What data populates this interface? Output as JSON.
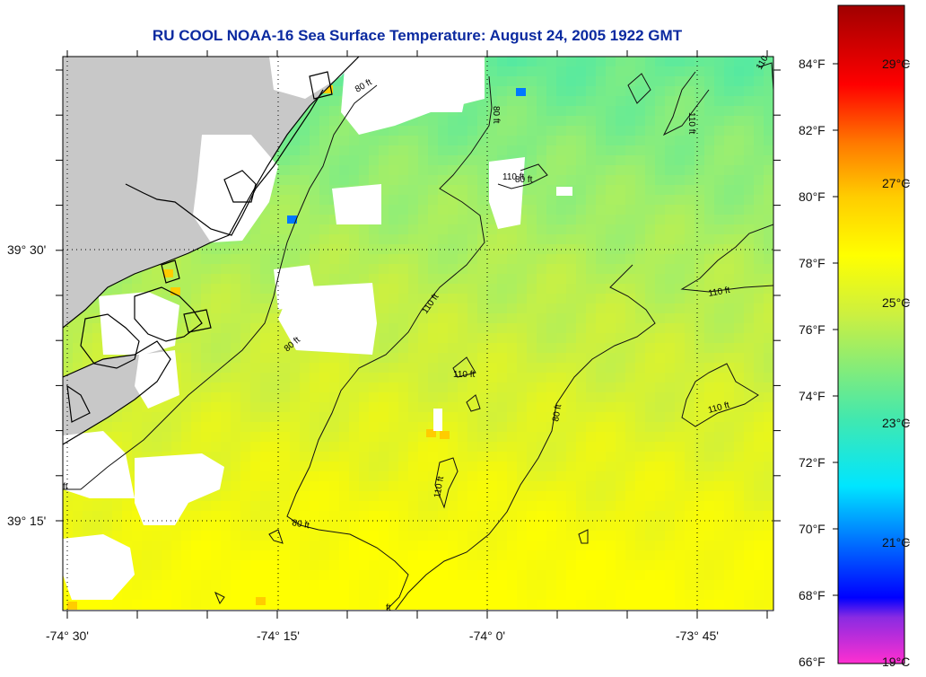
{
  "title": "RU COOL  NOAA-16  Sea Surface Temperature:  August 24, 2005 1922 GMT",
  "axes": {
    "longitude_ticks": [
      "-74° 30'",
      "-74° 15'",
      "-74° 0'",
      "-73° 45'"
    ],
    "latitude_ticks": [
      "39° 30'",
      "39° 15'"
    ]
  },
  "colorbar": {
    "fahrenheit_labels": [
      "84°F",
      "82°F",
      "80°F",
      "78°F",
      "76°F",
      "74°F",
      "72°F",
      "70°F",
      "68°F",
      "66°F"
    ],
    "celsius_labels": [
      "29°C",
      "27°C",
      "25°C",
      "23°C",
      "21°C",
      "19°C"
    ],
    "range_celsius": [
      19,
      30
    ],
    "colors": [
      "#ff2fd0",
      "#8a2be2",
      "#0000ff",
      "#0078ff",
      "#00e6ff",
      "#40e8b0",
      "#ccf040",
      "#ffff00",
      "#ffcc00",
      "#ff7a00",
      "#ff0000",
      "#a00000"
    ]
  },
  "map": {
    "land_color": "#c8c8c8",
    "no_data_color": "#ffffff",
    "contour_labels": [
      "80 ft",
      "110 ft",
      "80 ft",
      "110 ft",
      "80 ft",
      "80 ft",
      "110 ft",
      "110 ft",
      "80 ft",
      "80 ft",
      "110 ft",
      "110 ft",
      "110 ft",
      "ft",
      "ft",
      "110"
    ]
  }
}
